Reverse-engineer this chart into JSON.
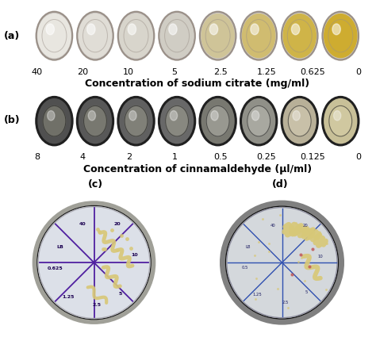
{
  "panel_a_label": "(a)",
  "panel_b_label": "(b)",
  "panel_c_label": "(c)",
  "panel_d_label": "(d)",
  "sodium_citrate_values": [
    "40",
    "20",
    "10",
    "5",
    "2.5",
    "1.25",
    "0.625",
    "0"
  ],
  "cinnamaldehyde_values": [
    "8",
    "4",
    "2",
    "1",
    "0.5",
    "0.25",
    "0.125",
    "0"
  ],
  "xlabel_a": "Concentration of sodium citrate (mg/ml)",
  "xlabel_b": "Concentration of cinnamaldehyde (μl/ml)",
  "bg_color": "#ffffff",
  "panel_a_bg": "#c8c4bc",
  "panel_b_bg": "#787878",
  "well_colors_a": [
    "#e8e6e0",
    "#e0ddd6",
    "#d8d5cc",
    "#d0cdc4",
    "#cfc498",
    "#d0bc70",
    "#cfb448",
    "#ceac30"
  ],
  "well_ring_a": "#9a9088",
  "well_colors_b_outer": [
    "#505050",
    "#585858",
    "#606060",
    "#686868",
    "#787870",
    "#909088",
    "#b8b098",
    "#c8c098"
  ],
  "well_colors_b_inner": [
    "#707068",
    "#787870",
    "#808078",
    "#888880",
    "#989890",
    "#a8a8a0",
    "#c8c0a8",
    "#d0c8a0"
  ],
  "well_ring_b": "#202020",
  "plate_c_outer": "#a0a098",
  "plate_c_rim": "#c8c4bc",
  "plate_c_fill": "#dce0e8",
  "plate_d_outer": "#606060",
  "plate_d_rim": "#909090",
  "plate_d_fill": "#d4d8dc",
  "line_color_c": "#5020a0",
  "line_color_d": "#3050b0",
  "streak_color": "#d8c878",
  "tick_fontsize": 8,
  "xlabel_fontsize": 9,
  "panel_label_fontsize": 9,
  "label_color_c": "#1a0050",
  "label_color_d": "#1a1a60"
}
